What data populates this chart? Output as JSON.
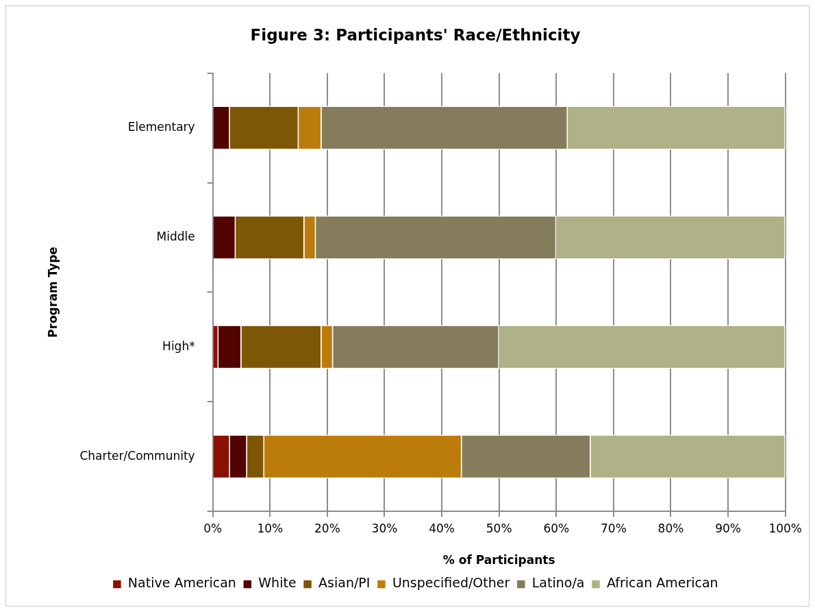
{
  "chart_data": {
    "type": "bar",
    "title": "Figure 3: Participants' Race/Ethnicity",
    "xlabel": "% of Participants",
    "ylabel": "Program Type",
    "orientation": "horizontal",
    "stacked": true,
    "categories": [
      "Elementary",
      "Middle",
      "High*",
      "Charter/Community"
    ],
    "series": [
      {
        "name": "Native American",
        "color": "#8b1000",
        "values": [
          0,
          0,
          1,
          3
        ]
      },
      {
        "name": "White",
        "color": "#520500",
        "values": [
          3,
          4,
          4,
          3
        ]
      },
      {
        "name": "Asian/PI",
        "color": "#7d5705",
        "values": [
          12,
          12,
          14,
          3
        ]
      },
      {
        "name": "Unspecified/Other",
        "color": "#bc7c0b",
        "values": [
          4,
          2,
          2,
          34.5
        ]
      },
      {
        "name": "Latino/a",
        "color": "#857c5b",
        "values": [
          43,
          42,
          29,
          22.5
        ]
      },
      {
        "name": "African American",
        "color": "#afb186",
        "values": [
          38,
          40,
          50,
          34
        ]
      }
    ],
    "xlim": [
      0,
      100
    ],
    "xticks": [
      {
        "value": 0,
        "label": "0%"
      },
      {
        "value": 10,
        "label": "10%"
      },
      {
        "value": 20,
        "label": "20%"
      },
      {
        "value": 30,
        "label": "30%"
      },
      {
        "value": 40,
        "label": "40%"
      },
      {
        "value": 50,
        "label": "50%"
      },
      {
        "value": 60,
        "label": "60%"
      },
      {
        "value": 70,
        "label": "70%"
      },
      {
        "value": 80,
        "label": "80%"
      },
      {
        "value": 90,
        "label": "90%"
      },
      {
        "value": 100,
        "label": "100%"
      }
    ],
    "grid": "x",
    "legend": "bottom"
  }
}
